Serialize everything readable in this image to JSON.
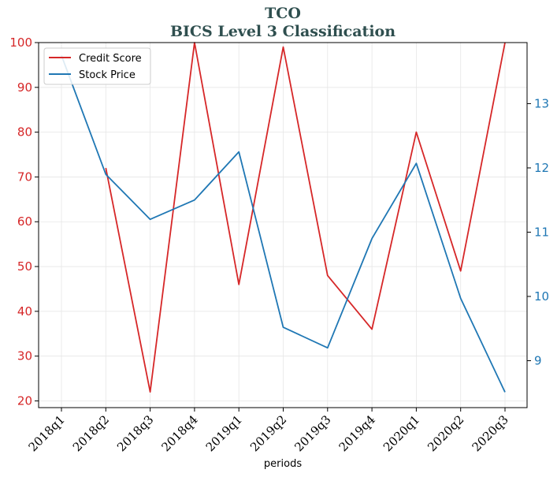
{
  "chart_data": {
    "type": "line",
    "title": "TCO",
    "subtitle": "BICS Level 3 Classification",
    "xlabel": "periods",
    "categories": [
      "2018q1",
      "2018q2",
      "2018q3",
      "2018q4",
      "2019q1",
      "2019q2",
      "2019q3",
      "2019q4",
      "2020q1",
      "2020q2",
      "2020q3"
    ],
    "y_left": {
      "ylim": [
        18.5,
        100
      ],
      "ticks": [
        20,
        30,
        40,
        50,
        60,
        70,
        80,
        90,
        100
      ],
      "color": "#d62728"
    },
    "y_right": {
      "ylim": [
        8.27,
        13.95
      ],
      "ticks": [
        9,
        10,
        11,
        12,
        13
      ],
      "color": "#1f77b4"
    },
    "grid": true,
    "legend": {
      "placement": "top-left"
    },
    "series": [
      {
        "name": "Credit Score",
        "axis": "left",
        "color": "#d62728",
        "values": [
          null,
          72,
          22,
          100,
          46,
          99,
          48,
          36,
          80,
          49,
          100
        ]
      },
      {
        "name": "Stock Price",
        "axis": "right",
        "color": "#1f77b4",
        "values": [
          13.75,
          11.9,
          11.2,
          11.5,
          12.25,
          9.52,
          9.2,
          10.9,
          12.07,
          9.97,
          8.51
        ]
      }
    ]
  }
}
